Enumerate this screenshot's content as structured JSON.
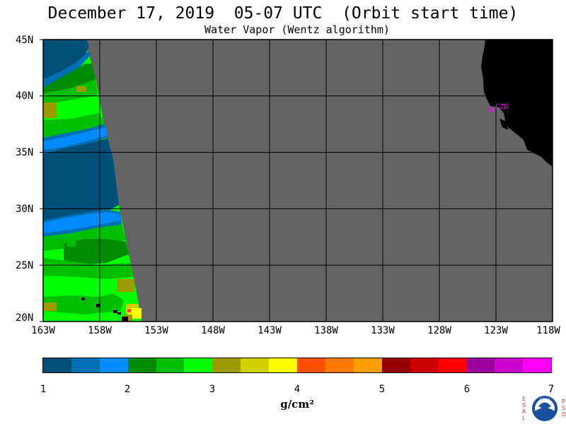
{
  "header": {
    "title": "December 17, 2019  05-07 UTC  (Orbit start time)",
    "subtitle": "Water Vapor (Wentz algorithm)"
  },
  "map": {
    "lat_labels": [
      "45N",
      "40N",
      "35N",
      "30N",
      "25N",
      "20N"
    ],
    "lon_labels": [
      "163W",
      "158W",
      "153W",
      "148W",
      "143W",
      "138W",
      "133W",
      "128W",
      "123W",
      "118W"
    ],
    "lat_range": [
      20,
      45
    ],
    "lon_range": [
      -163,
      -118
    ],
    "station": {
      "label": "CZD",
      "lat": 38.6,
      "lon": -123.2
    },
    "colors": {
      "no_data": "#646464",
      "land": "#000000",
      "grid": "#000000",
      "station": "#ff00ff"
    }
  },
  "colorbar": {
    "tick_labels": [
      "1",
      "2",
      "3",
      "4",
      "5",
      "6",
      "7"
    ],
    "range": [
      1,
      7
    ],
    "unit": "g/cm²",
    "colors": [
      "#004f78",
      "#0070b4",
      "#008cff",
      "#008c00",
      "#00be00",
      "#00ff00",
      "#9c9c00",
      "#d0d000",
      "#ffff00",
      "#ff5000",
      "#ff7800",
      "#ffa000",
      "#960000",
      "#cc0000",
      "#ff0000",
      "#9c009c",
      "#cc00cc",
      "#ff00ff"
    ]
  },
  "logo": {
    "left_letters": "ESRL",
    "right_letters": "PSD",
    "emblem_text": "NOAA"
  }
}
